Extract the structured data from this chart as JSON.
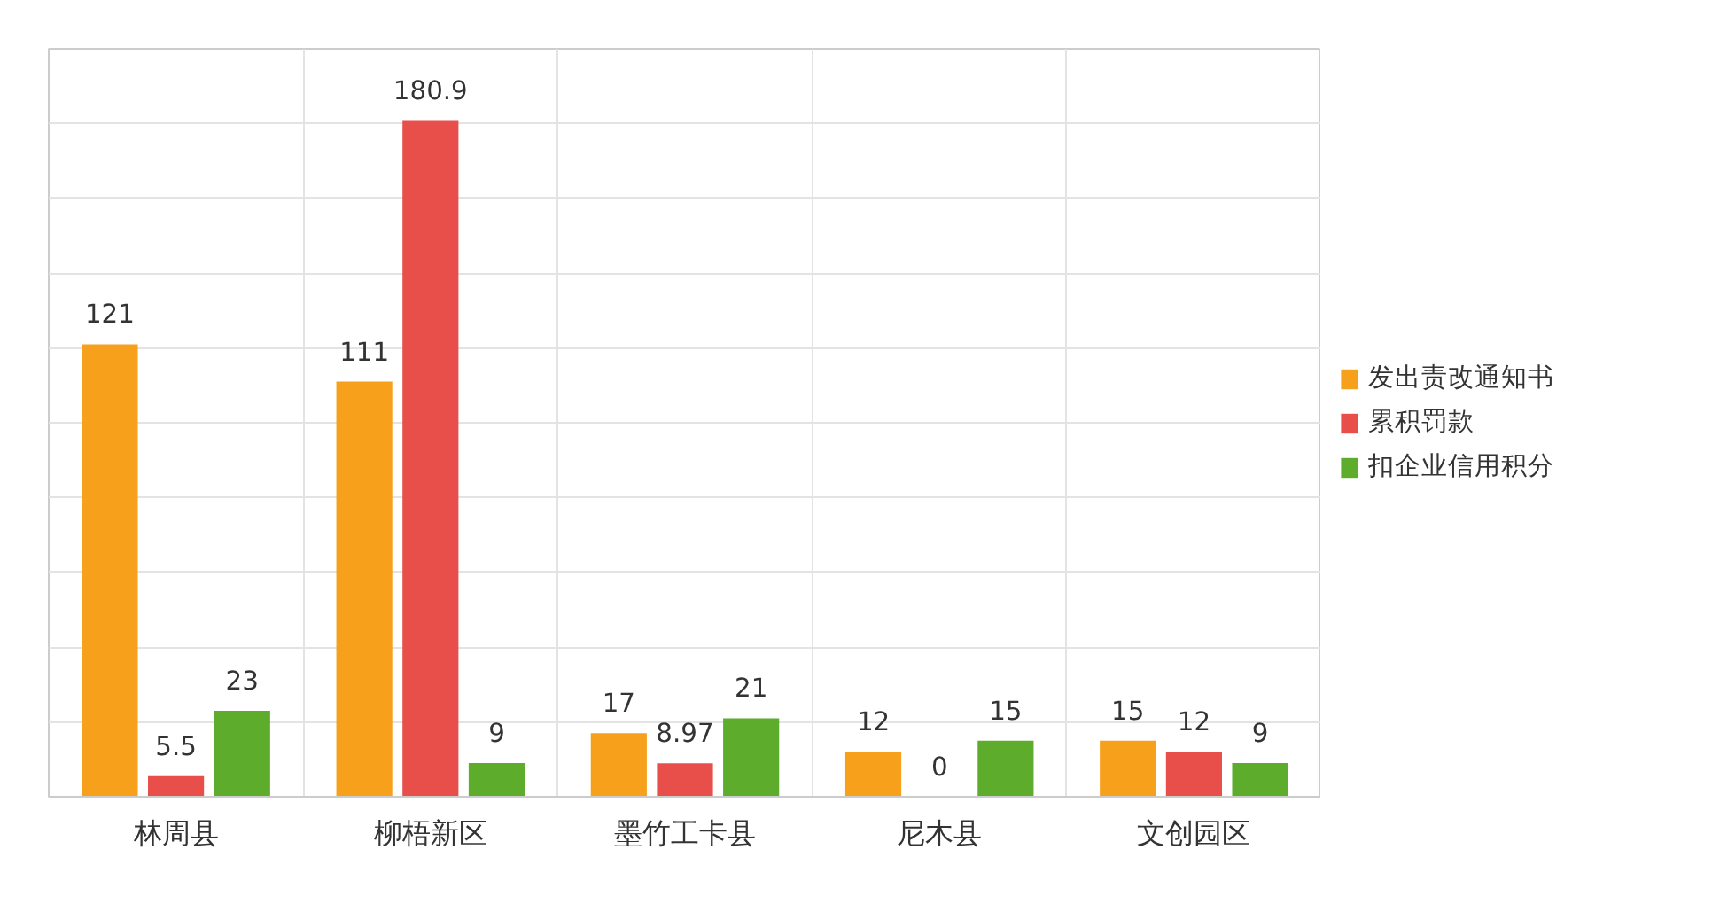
{
  "chart_data": {
    "type": "bar",
    "categories": [
      "林周县",
      "柳梧新区",
      "墨竹工卡县",
      "尼木县",
      "文创园区"
    ],
    "series": [
      {
        "name": "发出责改通知书",
        "color": "#f7a01c",
        "values": [
          121,
          111,
          17,
          12,
          15
        ]
      },
      {
        "name": "累积罚款",
        "color": "#e84f4a",
        "values": [
          5.5,
          180.9,
          8.97,
          0,
          12
        ]
      },
      {
        "name": "扣企业信用积分",
        "color": "#5dac2c",
        "values": [
          23,
          9,
          21,
          15,
          9
        ]
      }
    ],
    "ylim": [
      0,
      200
    ],
    "yticks": [
      {
        "value": 0,
        "label": null
      },
      {
        "value": 20,
        "label": null
      },
      {
        "value": 40,
        "label": null
      },
      {
        "value": 60,
        "label": null
      },
      {
        "value": 80,
        "label": null
      },
      {
        "value": 100,
        "label": null
      },
      {
        "value": 120,
        "label": null
      },
      {
        "value": 140,
        "label": null
      },
      {
        "value": 160,
        "label": null
      },
      {
        "value": 180,
        "label": null
      },
      {
        "value": 200,
        "label": null
      }
    ],
    "tick_labels": "x",
    "grid": true,
    "legend": "right",
    "data_labels": true
  }
}
